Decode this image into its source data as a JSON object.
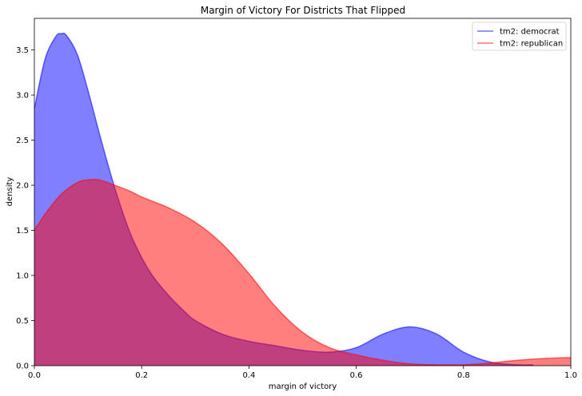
{
  "chart_data": {
    "type": "area",
    "title": "Margin of Victory For Districts That Flipped",
    "xlabel": "margin of victory",
    "ylabel": "density",
    "xlim": [
      0.0,
      1.0
    ],
    "ylim": [
      0.0,
      3.85
    ],
    "xticks": [
      0.0,
      0.2,
      0.4,
      0.6,
      0.8,
      1.0
    ],
    "xtick_labels": [
      "0.0",
      "0.2",
      "0.4",
      "0.6",
      "0.8",
      "1.0"
    ],
    "yticks": [
      0.0,
      0.5,
      1.0,
      1.5,
      2.0,
      2.5,
      3.0,
      3.5
    ],
    "ytick_labels": [
      "0.0",
      "0.5",
      "1.0",
      "1.5",
      "2.0",
      "2.5",
      "3.0",
      "3.5"
    ],
    "grid": false,
    "legend_position": "top-right",
    "series": [
      {
        "name": "tm2: democrat",
        "color": "#0000ff",
        "fill_opacity": 0.5,
        "x": [
          0.0,
          0.02,
          0.04,
          0.05,
          0.06,
          0.08,
          0.1,
          0.12,
          0.14,
          0.16,
          0.18,
          0.2,
          0.22,
          0.25,
          0.28,
          0.3,
          0.35,
          0.4,
          0.45,
          0.5,
          0.55,
          0.6,
          0.65,
          0.7,
          0.75,
          0.8,
          0.85,
          0.9,
          0.93
        ],
        "y": [
          2.85,
          3.4,
          3.65,
          3.68,
          3.66,
          3.45,
          3.05,
          2.6,
          2.17,
          1.78,
          1.45,
          1.2,
          1.0,
          0.78,
          0.6,
          0.5,
          0.35,
          0.27,
          0.22,
          0.17,
          0.15,
          0.2,
          0.35,
          0.43,
          0.35,
          0.15,
          0.04,
          0.01,
          0.01
        ]
      },
      {
        "name": "tm2: republican",
        "color": "#ff0000",
        "fill_opacity": 0.5,
        "x": [
          0.0,
          0.02,
          0.05,
          0.08,
          0.1,
          0.12,
          0.15,
          0.18,
          0.2,
          0.25,
          0.3,
          0.35,
          0.4,
          0.45,
          0.5,
          0.55,
          0.6,
          0.65,
          0.7,
          0.75,
          0.8,
          0.85,
          0.9,
          0.95,
          1.0
        ],
        "y": [
          1.5,
          1.68,
          1.9,
          2.03,
          2.06,
          2.06,
          2.0,
          1.93,
          1.87,
          1.75,
          1.59,
          1.35,
          1.02,
          0.65,
          0.37,
          0.2,
          0.12,
          0.06,
          0.02,
          0.01,
          0.01,
          0.03,
          0.06,
          0.08,
          0.09
        ]
      }
    ]
  }
}
